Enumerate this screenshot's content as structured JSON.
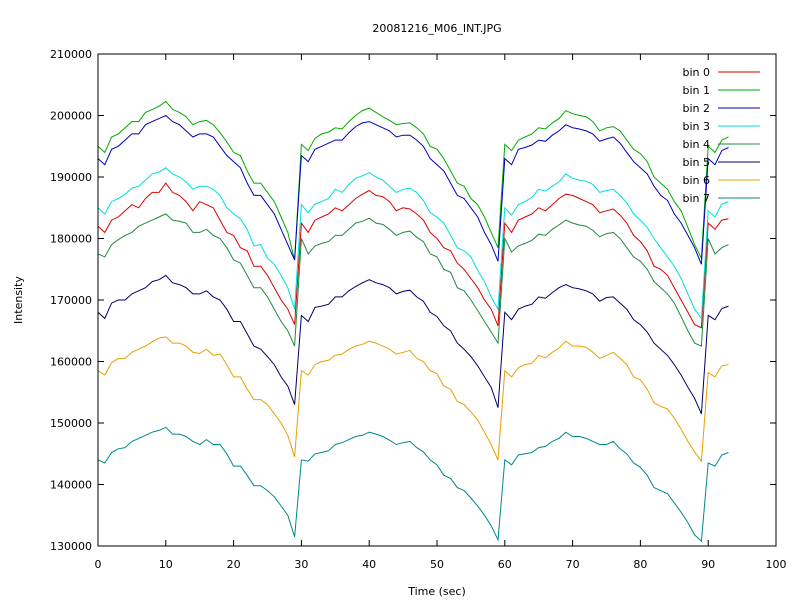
{
  "chart_data": {
    "type": "line",
    "title": "20081216_M06_INT.JPG",
    "xlabel": "Time (sec)",
    "ylabel": "Intensity",
    "xlim": [
      0,
      100
    ],
    "ylim": [
      130000,
      210000
    ],
    "x_ticks": [
      "0",
      "10",
      "20",
      "30",
      "40",
      "50",
      "60",
      "70",
      "80",
      "90",
      "100"
    ],
    "y_ticks": [
      "130000",
      "140000",
      "150000",
      "160000",
      "170000",
      "180000",
      "190000",
      "200000",
      "210000"
    ],
    "grid": false,
    "legend_position": "top-right",
    "x": [
      0,
      1,
      2,
      3,
      4,
      5,
      6,
      7,
      8,
      9,
      10,
      11,
      12,
      13,
      14,
      15,
      16,
      17,
      18,
      19,
      20,
      21,
      22,
      23,
      24,
      25,
      26,
      27,
      28,
      29,
      30,
      31,
      32,
      33,
      34,
      35,
      36,
      37,
      38,
      39,
      40,
      41,
      42,
      43,
      44,
      45,
      46,
      47,
      48,
      49,
      50,
      51,
      52,
      53,
      54,
      55,
      56,
      57,
      58,
      59,
      60,
      61,
      62,
      63,
      64,
      65,
      66,
      67,
      68,
      69,
      70,
      71,
      72,
      73,
      74,
      75,
      76,
      77,
      78,
      79,
      80,
      81,
      82,
      83,
      84,
      85,
      86,
      87,
      88,
      89,
      90,
      91,
      92,
      93
    ],
    "series": [
      {
        "name": "bin 0",
        "color": "#dd0000",
        "values": [
          182000,
          181000,
          183000,
          183500,
          184500,
          185500,
          185000,
          186500,
          187500,
          187500,
          189000,
          187500,
          187000,
          186000,
          184500,
          186000,
          185500,
          185000,
          183000,
          181000,
          180500,
          178500,
          178000,
          175500,
          175500,
          174000,
          172000,
          170000,
          168500,
          166000,
          182500,
          181000,
          183000,
          183500,
          184000,
          185000,
          184500,
          185500,
          186500,
          187200,
          187800,
          187000,
          186800,
          186000,
          184500,
          185000,
          184800,
          184000,
          183000,
          181000,
          180000,
          178500,
          178000,
          176000,
          175000,
          173500,
          172000,
          170000,
          168500,
          165800,
          182500,
          181000,
          183000,
          183500,
          184000,
          185000,
          184500,
          185500,
          186500,
          187200,
          187000,
          186500,
          186000,
          185500,
          184200,
          184500,
          184800,
          183800,
          182500,
          180500,
          179500,
          178000,
          175500,
          175000,
          174000,
          172000,
          170000,
          168000,
          166000,
          165500,
          182500,
          181500,
          183000,
          183200
        ]
      },
      {
        "name": "bin 1",
        "color": "#00aa00",
        "values": [
          195000,
          194000,
          196500,
          197000,
          198000,
          199000,
          199000,
          200500,
          201000,
          201500,
          202300,
          201000,
          200500,
          199800,
          198500,
          199000,
          199200,
          198500,
          197200,
          195700,
          194000,
          193500,
          191000,
          189000,
          189000,
          187500,
          186000,
          183500,
          181000,
          176500,
          195300,
          194300,
          196300,
          197000,
          197300,
          198000,
          197800,
          199000,
          200000,
          200800,
          201200,
          200500,
          199800,
          199200,
          198500,
          198700,
          198800,
          198000,
          197000,
          195000,
          194500,
          193000,
          191000,
          189000,
          188500,
          186500,
          185500,
          183500,
          181000,
          178500,
          195300,
          194300,
          196000,
          196500,
          197000,
          198000,
          197800,
          198800,
          199500,
          200800,
          200300,
          200000,
          199800,
          199000,
          197500,
          198000,
          198200,
          197500,
          196000,
          194500,
          193800,
          192500,
          190000,
          189000,
          188000,
          186000,
          184500,
          181800,
          179000,
          176800,
          195000,
          194000,
          196000,
          196500
        ]
      },
      {
        "name": "bin 2",
        "color": "#0000bb",
        "values": [
          193000,
          192000,
          194500,
          195000,
          196000,
          197000,
          197000,
          198500,
          199000,
          199500,
          200000,
          199000,
          198500,
          197500,
          196500,
          197000,
          197000,
          196500,
          195000,
          193500,
          192500,
          191500,
          189000,
          187000,
          187000,
          185500,
          184000,
          181500,
          179000,
          176500,
          193500,
          192500,
          194500,
          195000,
          195500,
          196000,
          196000,
          197200,
          198200,
          198800,
          199000,
          198500,
          198000,
          197500,
          196500,
          196800,
          196800,
          196000,
          195000,
          193000,
          192000,
          191000,
          189000,
          187000,
          186500,
          185000,
          183500,
          181000,
          179000,
          176300,
          193000,
          192000,
          194500,
          194800,
          195200,
          196000,
          195800,
          196800,
          197500,
          198500,
          198000,
          197800,
          197500,
          197000,
          195800,
          196200,
          196500,
          195500,
          194000,
          192500,
          191500,
          190500,
          188500,
          187000,
          186200,
          184000,
          182500,
          180500,
          178500,
          175800,
          193000,
          192000,
          194300,
          194800
        ]
      },
      {
        "name": "bin 3",
        "color": "#00dddd",
        "values": [
          185000,
          184000,
          186000,
          186500,
          187200,
          188200,
          188500,
          189500,
          190500,
          190800,
          191500,
          190500,
          190000,
          189200,
          188000,
          188500,
          188500,
          188000,
          187000,
          185000,
          184000,
          183200,
          181500,
          178800,
          179000,
          176800,
          175800,
          174000,
          172000,
          168500,
          185500,
          184200,
          185600,
          186000,
          186500,
          188000,
          187500,
          188800,
          189800,
          190200,
          190700,
          190000,
          189500,
          188500,
          187500,
          188000,
          188200,
          187500,
          186200,
          184200,
          183500,
          182500,
          180500,
          178500,
          178000,
          177000,
          174800,
          173000,
          170500,
          168500,
          185000,
          183800,
          185500,
          186000,
          186700,
          188000,
          187700,
          188500,
          189200,
          190500,
          189800,
          189500,
          189300,
          188800,
          187500,
          187800,
          188000,
          187000,
          185800,
          184000,
          183000,
          181800,
          180000,
          178500,
          177000,
          175500,
          173500,
          171000,
          168500,
          167000,
          184500,
          183500,
          185600,
          186000
        ]
      },
      {
        "name": "bin 4",
        "color": "#228844",
        "values": [
          177500,
          177000,
          179000,
          179800,
          180500,
          181000,
          182000,
          182500,
          183000,
          183500,
          184000,
          183000,
          182800,
          182500,
          181000,
          181000,
          181500,
          180500,
          180000,
          178500,
          176500,
          176000,
          174000,
          172000,
          172000,
          170500,
          168500,
          166500,
          165000,
          162500,
          180000,
          177500,
          178800,
          179200,
          179500,
          180500,
          180500,
          181500,
          182500,
          182800,
          183300,
          182500,
          182300,
          181500,
          180500,
          181000,
          181200,
          180200,
          179500,
          177500,
          177000,
          175000,
          174500,
          172000,
          171500,
          170000,
          168300,
          166500,
          164800,
          163000,
          180000,
          177800,
          178800,
          179200,
          179700,
          180700,
          180500,
          181500,
          182200,
          183000,
          182500,
          182200,
          182000,
          181300,
          180300,
          180800,
          181000,
          180000,
          178500,
          177000,
          176300,
          175000,
          173000,
          172000,
          171000,
          169500,
          167300,
          165000,
          163000,
          162500,
          180000,
          177500,
          178500,
          179000
        ]
      },
      {
        "name": "bin 5",
        "color": "#000066",
        "values": [
          168000,
          167000,
          169500,
          170000,
          170000,
          171000,
          171500,
          172000,
          173000,
          173300,
          174000,
          172800,
          172500,
          172000,
          171000,
          171000,
          171500,
          170500,
          170000,
          168500,
          166500,
          166500,
          164500,
          162500,
          162000,
          160800,
          159500,
          157500,
          156000,
          153000,
          167500,
          166500,
          168800,
          169000,
          169300,
          170500,
          170500,
          171500,
          172200,
          172800,
          173300,
          172800,
          172500,
          172000,
          171000,
          171400,
          171600,
          170500,
          169800,
          168000,
          167300,
          165800,
          165000,
          163000,
          162000,
          160800,
          159300,
          157500,
          155800,
          152500,
          168000,
          166800,
          168500,
          169000,
          169300,
          170500,
          170300,
          171200,
          172000,
          172500,
          172000,
          171800,
          171500,
          171000,
          169800,
          170400,
          170500,
          169500,
          168500,
          166800,
          166000,
          164800,
          163000,
          162000,
          161000,
          159500,
          157800,
          155800,
          154000,
          151500,
          167500,
          166800,
          168600,
          169000
        ]
      },
      {
        "name": "bin 6",
        "color": "#e8a000",
        "values": [
          158500,
          157800,
          159800,
          160500,
          160500,
          161500,
          162000,
          162500,
          163200,
          163800,
          164000,
          163000,
          163000,
          162500,
          161500,
          161300,
          162000,
          161000,
          161200,
          159500,
          157500,
          157500,
          155500,
          153800,
          153800,
          153000,
          151500,
          150000,
          148000,
          144500,
          158500,
          157800,
          159500,
          160000,
          160200,
          161000,
          161200,
          162000,
          162500,
          162800,
          163300,
          163000,
          162500,
          162000,
          161200,
          161500,
          161800,
          160500,
          160000,
          158500,
          158000,
          156000,
          155500,
          153500,
          153000,
          151800,
          150500,
          148500,
          146500,
          144000,
          158500,
          157500,
          159000,
          159500,
          159700,
          161000,
          160600,
          161500,
          162200,
          163300,
          162500,
          162500,
          162300,
          161500,
          160500,
          161000,
          161500,
          160500,
          159500,
          157500,
          157000,
          155500,
          153300,
          152700,
          152300,
          150800,
          149000,
          147000,
          145300,
          143800,
          158200,
          157500,
          159300,
          159500
        ]
      },
      {
        "name": "bin 7",
        "color": "#008888",
        "values": [
          144000,
          143500,
          145200,
          145800,
          146000,
          147000,
          147500,
          148000,
          148500,
          148800,
          149300,
          148200,
          148200,
          147800,
          147000,
          146500,
          147300,
          146500,
          146500,
          145000,
          143000,
          143000,
          141500,
          139800,
          139800,
          139000,
          138000,
          136500,
          135000,
          131500,
          144000,
          143800,
          145000,
          145200,
          145500,
          146500,
          146800,
          147300,
          147800,
          148000,
          148500,
          148200,
          147800,
          147200,
          146500,
          146800,
          147000,
          146000,
          145300,
          144000,
          143200,
          141500,
          141000,
          139500,
          139000,
          137800,
          136500,
          135000,
          133300,
          131000,
          144000,
          143200,
          144800,
          145000,
          145200,
          146000,
          146200,
          147000,
          147500,
          148500,
          147800,
          147800,
          147500,
          147000,
          146500,
          146500,
          147000,
          145800,
          145000,
          143500,
          142800,
          141500,
          139500,
          139000,
          138500,
          137000,
          135500,
          133800,
          131800,
          130800,
          143500,
          143000,
          144800,
          145200
        ]
      }
    ]
  }
}
